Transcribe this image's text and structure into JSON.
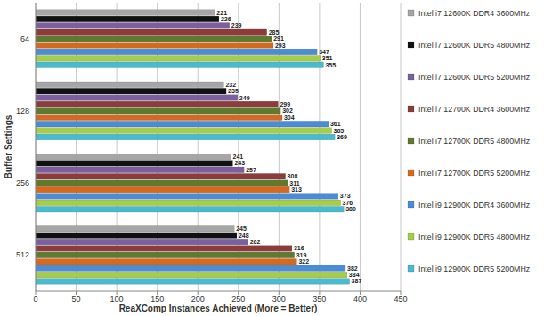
{
  "chart_data": {
    "type": "bar",
    "orientation": "horizontal",
    "x_label": "ReaXComp Instances Achieved (More = Better)",
    "y_label": "Buffer Settings",
    "categories": [
      "64",
      "128",
      "256",
      "512"
    ],
    "series": [
      {
        "name": "Intel i7 12600K DDR4 3600MHz",
        "color": "#a6a6a6",
        "values": [
          221,
          232,
          241,
          245
        ]
      },
      {
        "name": "Intel i7 12600K DDR5 4800MHz",
        "color": "#111111",
        "values": [
          226,
          235,
          243,
          248
        ]
      },
      {
        "name": "Intel i7 12600K DDR5 5200MHz",
        "color": "#7b5fa0",
        "values": [
          239,
          249,
          257,
          262
        ]
      },
      {
        "name": "Intel i7 12700K DDR4 3600MHz",
        "color": "#8e3b3b",
        "values": [
          285,
          299,
          308,
          316
        ]
      },
      {
        "name": "Intel i7 12700K DDR5 4800MHz",
        "color": "#5e7a2e",
        "values": [
          291,
          302,
          311,
          319
        ]
      },
      {
        "name": "Intel i7 12700K DDR5 5200MHz",
        "color": "#d7691e",
        "values": [
          293,
          304,
          313,
          322
        ]
      },
      {
        "name": "Intel i9 12900K DDR4 3600MHz",
        "color": "#4a8cd6",
        "values": [
          347,
          361,
          373,
          382
        ]
      },
      {
        "name": "Intel i9 12900K DDR5 4800MHz",
        "color": "#a6cd48",
        "values": [
          351,
          365,
          376,
          384
        ]
      },
      {
        "name": "Intel i9 12900K DDR5 5200MHz",
        "color": "#48bccd",
        "values": [
          355,
          369,
          380,
          387
        ]
      }
    ],
    "xlim": [
      0,
      450
    ],
    "xticks": [
      0,
      50,
      100,
      150,
      200,
      250,
      300,
      350,
      400,
      450
    ],
    "grid": true,
    "legend": "right",
    "data_labels": true
  }
}
